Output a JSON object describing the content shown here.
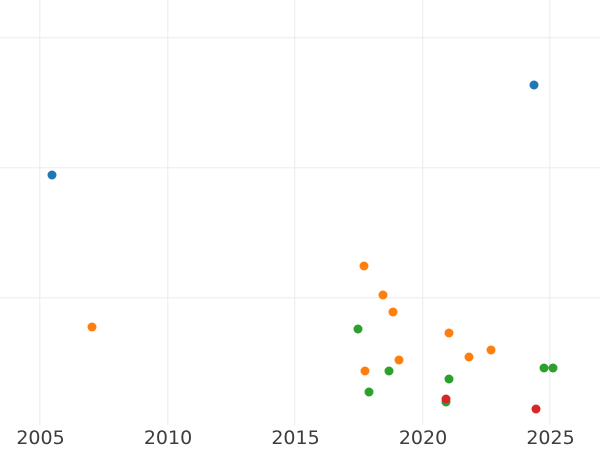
{
  "chart_data": {
    "type": "scatter",
    "title": "",
    "xlabel": "",
    "ylabel": "",
    "x_ticks": [
      2005,
      2010,
      2015,
      2020,
      2025
    ],
    "x_tick_labels": [
      "2005",
      "2010",
      "2015",
      "2020",
      "2025"
    ],
    "y_tick_labels": [],
    "y_gridline_units": [
      1,
      2,
      3
    ],
    "xlim": [
      2003.4,
      2027.0
    ],
    "ylim": [
      0,
      3.3
    ],
    "grid": true,
    "legend": "none",
    "marker_diameter_px": 9,
    "y_unit_note": "no y-axis tick labels visible in image; y values given in gridline units (1 = one horizontal gridline spacing above the bottom plot edge)",
    "colors": {
      "background": "#ffffff",
      "gridline": "#ebebeb",
      "tick_label": "#3d3d3d",
      "series_blue": "#1f77b4",
      "series_orange": "#ff7f0e",
      "series_green": "#2ca02c",
      "series_red": "#d62728"
    },
    "series": [
      {
        "name": "blue",
        "color": "#1f77b4",
        "points": [
          {
            "x": 2005.47,
            "y": 1.95
          },
          {
            "x": 2024.37,
            "y": 2.64
          }
        ]
      },
      {
        "name": "orange",
        "color": "#ff7f0e",
        "points": [
          {
            "x": 2007.04,
            "y": 0.78
          },
          {
            "x": 2017.71,
            "y": 1.25
          },
          {
            "x": 2018.45,
            "y": 1.02
          },
          {
            "x": 2018.84,
            "y": 0.89
          },
          {
            "x": 2019.08,
            "y": 0.52
          },
          {
            "x": 2017.75,
            "y": 0.44
          },
          {
            "x": 2021.04,
            "y": 0.73
          },
          {
            "x": 2021.82,
            "y": 0.55
          },
          {
            "x": 2022.69,
            "y": 0.6
          }
        ]
      },
      {
        "name": "green",
        "color": "#2ca02c",
        "points": [
          {
            "x": 2017.47,
            "y": 0.76
          },
          {
            "x": 2018.69,
            "y": 0.44
          },
          {
            "x": 2017.9,
            "y": 0.28
          },
          {
            "x": 2021.04,
            "y": 0.38
          },
          {
            "x": 2020.92,
            "y": 0.2
          },
          {
            "x": 2024.78,
            "y": 0.46
          },
          {
            "x": 2025.1,
            "y": 0.46
          }
        ]
      },
      {
        "name": "red",
        "color": "#d62728",
        "points": [
          {
            "x": 2020.92,
            "y": 0.22
          },
          {
            "x": 2024.45,
            "y": 0.15
          }
        ]
      }
    ]
  }
}
